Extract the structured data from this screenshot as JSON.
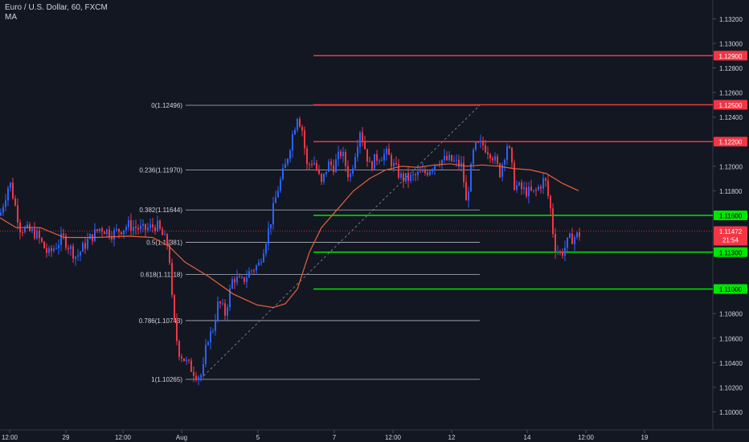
{
  "header": {
    "title": "Euro / U.S. Dollar, 60, FXCM",
    "indicator": "MA"
  },
  "chart_data": {
    "type": "candlestick",
    "symbol": "Euro / U.S. Dollar",
    "interval": "60",
    "source": "FXCM",
    "y_range": [
      1.099,
      1.134
    ],
    "y_ticks": [
      "1.13200",
      "1.13000",
      "1.12800",
      "1.12600",
      "1.12400",
      "1.12000",
      "1.11800",
      "1.10800",
      "1.10600",
      "1.10400",
      "1.10200",
      "1.10000"
    ],
    "x_ticks": [
      "12:00",
      "29",
      "12:00",
      "Aug",
      "5",
      "7",
      "12:00",
      "12",
      "14",
      "12:00",
      "19"
    ],
    "ohlc_path": [
      [
        0,
        1.116
      ],
      [
        12,
        1.1188
      ],
      [
        25,
        1.115
      ],
      [
        45,
        1.1145
      ],
      [
        60,
        1.1128
      ],
      [
        78,
        1.1142
      ],
      [
        95,
        1.1126
      ],
      [
        110,
        1.114
      ],
      [
        125,
        1.115
      ],
      [
        140,
        1.1145
      ],
      [
        160,
        1.1152
      ],
      [
        178,
        1.1148
      ],
      [
        195,
        1.1152
      ],
      [
        205,
        1.114
      ],
      [
        210,
        1.1135
      ],
      [
        215,
        1.108
      ],
      [
        222,
        1.105
      ],
      [
        232,
        1.104
      ],
      [
        245,
        1.103
      ],
      [
        252,
        1.103
      ],
      [
        258,
        1.106
      ],
      [
        264,
        1.1065
      ],
      [
        272,
        1.109
      ],
      [
        280,
        1.108
      ],
      [
        290,
        1.111
      ],
      [
        300,
        1.1105
      ],
      [
        312,
        1.1115
      ],
      [
        322,
        1.112
      ],
      [
        335,
        1.115
      ],
      [
        345,
        1.118
      ],
      [
        355,
        1.12
      ],
      [
        362,
        1.122
      ],
      [
        370,
        1.1242
      ],
      [
        376,
        1.123
      ],
      [
        382,
        1.12
      ],
      [
        390,
        1.1205
      ],
      [
        400,
        1.1185
      ],
      [
        408,
        1.1202
      ],
      [
        415,
        1.12
      ],
      [
        425,
        1.1212
      ],
      [
        435,
        1.119
      ],
      [
        448,
        1.123
      ],
      [
        460,
        1.12
      ],
      [
        470,
        1.1208
      ],
      [
        482,
        1.121
      ],
      [
        490,
        1.12
      ],
      [
        500,
        1.119
      ],
      [
        510,
        1.119
      ],
      [
        520,
        1.1193
      ],
      [
        530,
        1.1195
      ],
      [
        545,
        1.1205
      ],
      [
        560,
        1.1205
      ],
      [
        575,
        1.12
      ],
      [
        580,
        1.117
      ],
      [
        590,
        1.1215
      ],
      [
        600,
        1.1218
      ],
      [
        612,
        1.121
      ],
      [
        622,
        1.1195
      ],
      [
        632,
        1.122
      ],
      [
        640,
        1.1185
      ],
      [
        652,
        1.118
      ],
      [
        665,
        1.1178
      ],
      [
        678,
        1.119
      ],
      [
        685,
        1.1165
      ],
      [
        690,
        1.1135
      ],
      [
        698,
        1.1128
      ],
      [
        708,
        1.114
      ],
      [
        722,
        1.1145
      ]
    ],
    "ma_series": [
      [
        0,
        1.1158
      ],
      [
        20,
        1.115
      ],
      [
        50,
        1.115
      ],
      [
        80,
        1.1142
      ],
      [
        120,
        1.1142
      ],
      [
        160,
        1.1143
      ],
      [
        190,
        1.1142
      ],
      [
        210,
        1.1135
      ],
      [
        230,
        1.1122
      ],
      [
        260,
        1.111
      ],
      [
        290,
        1.1096
      ],
      [
        320,
        1.1087
      ],
      [
        340,
        1.1085
      ],
      [
        355,
        1.1088
      ],
      [
        370,
        1.11
      ],
      [
        385,
        1.113
      ],
      [
        400,
        1.115
      ],
      [
        420,
        1.1165
      ],
      [
        440,
        1.118
      ],
      [
        460,
        1.119
      ],
      [
        480,
        1.1197
      ],
      [
        500,
        1.12
      ],
      [
        520,
        1.1199
      ],
      [
        540,
        1.1201
      ],
      [
        560,
        1.1202
      ],
      [
        580,
        1.12
      ],
      [
        600,
        1.1201
      ],
      [
        620,
        1.12
      ],
      [
        640,
        1.1198
      ],
      [
        660,
        1.1197
      ],
      [
        680,
        1.1194
      ],
      [
        700,
        1.1186
      ],
      [
        720,
        1.118
      ]
    ],
    "fibonacci": [
      {
        "ratio": "0",
        "value": 1.12496,
        "label": "0(1.12496)"
      },
      {
        "ratio": "0.236",
        "value": 1.1197,
        "label": "0.236(1.11970)"
      },
      {
        "ratio": "0.382",
        "value": 1.11644,
        "label": "0.382(1.11644)"
      },
      {
        "ratio": "0.5",
        "value": 1.11381,
        "label": "0.5(1.11381)"
      },
      {
        "ratio": "0.618",
        "value": 1.11118,
        "label": "0.618(1.11118)"
      },
      {
        "ratio": "0.786",
        "value": 1.10743,
        "label": "0.786(1.10743)"
      },
      {
        "ratio": "1",
        "value": 1.10265,
        "label": "1(1.10265)"
      }
    ],
    "horizontal_lines": [
      {
        "value": 1.129,
        "label": "1.12900",
        "color": "#f23645"
      },
      {
        "value": 1.125,
        "label": "1.12500",
        "color": "#f23645"
      },
      {
        "value": 1.122,
        "label": "1.12200",
        "color": "#f23645"
      },
      {
        "value": 1.116,
        "label": "1.11600",
        "color": "#00e600"
      },
      {
        "value": 1.113,
        "label": "1.11300",
        "color": "#00e600"
      },
      {
        "value": 1.11,
        "label": "1.11000",
        "color": "#00e600"
      }
    ],
    "last_price": {
      "value": 1.11472,
      "label": "1.11472",
      "countdown": "21:54"
    },
    "colors": {
      "background": "#131722",
      "up": "#2962ff",
      "down": "#f23645",
      "ma": "#e8603c",
      "fib": "#b2b5be",
      "axis_text": "#d1d4dc"
    }
  }
}
